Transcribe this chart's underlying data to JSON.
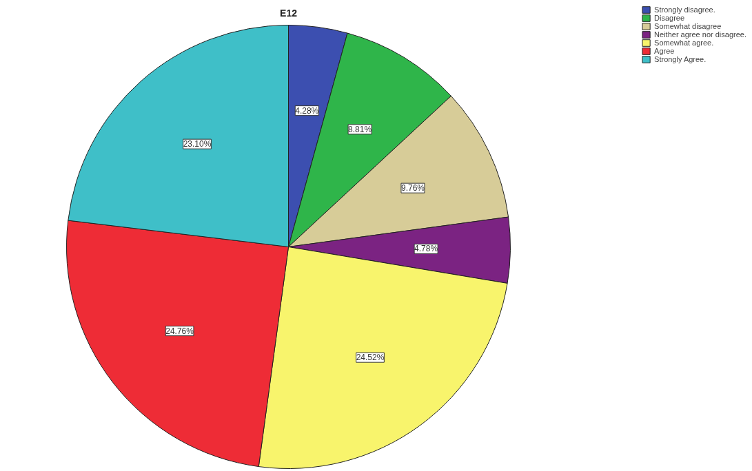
{
  "chart_data": {
    "type": "pie",
    "title": "E12",
    "categories": [
      "Strongly disagree.",
      "Disagree",
      "Somewhat disagree",
      "Neither agree nor disagree.",
      "Somewhat agree.",
      "Agree",
      "Strongly Agree."
    ],
    "values": [
      4.28,
      8.81,
      9.76,
      4.78,
      24.52,
      24.76,
      23.1
    ],
    "colors": [
      "#3c4fb0",
      "#2fb54a",
      "#d7cc98",
      "#7b2382",
      "#f8f46c",
      "#ee2c36",
      "#3fbfc8"
    ],
    "value_labels": [
      "4.28%",
      "8.81%",
      "9.76%",
      "4.78%",
      "24.52%",
      "24.76%",
      "23.10%"
    ],
    "legend": "top right"
  }
}
